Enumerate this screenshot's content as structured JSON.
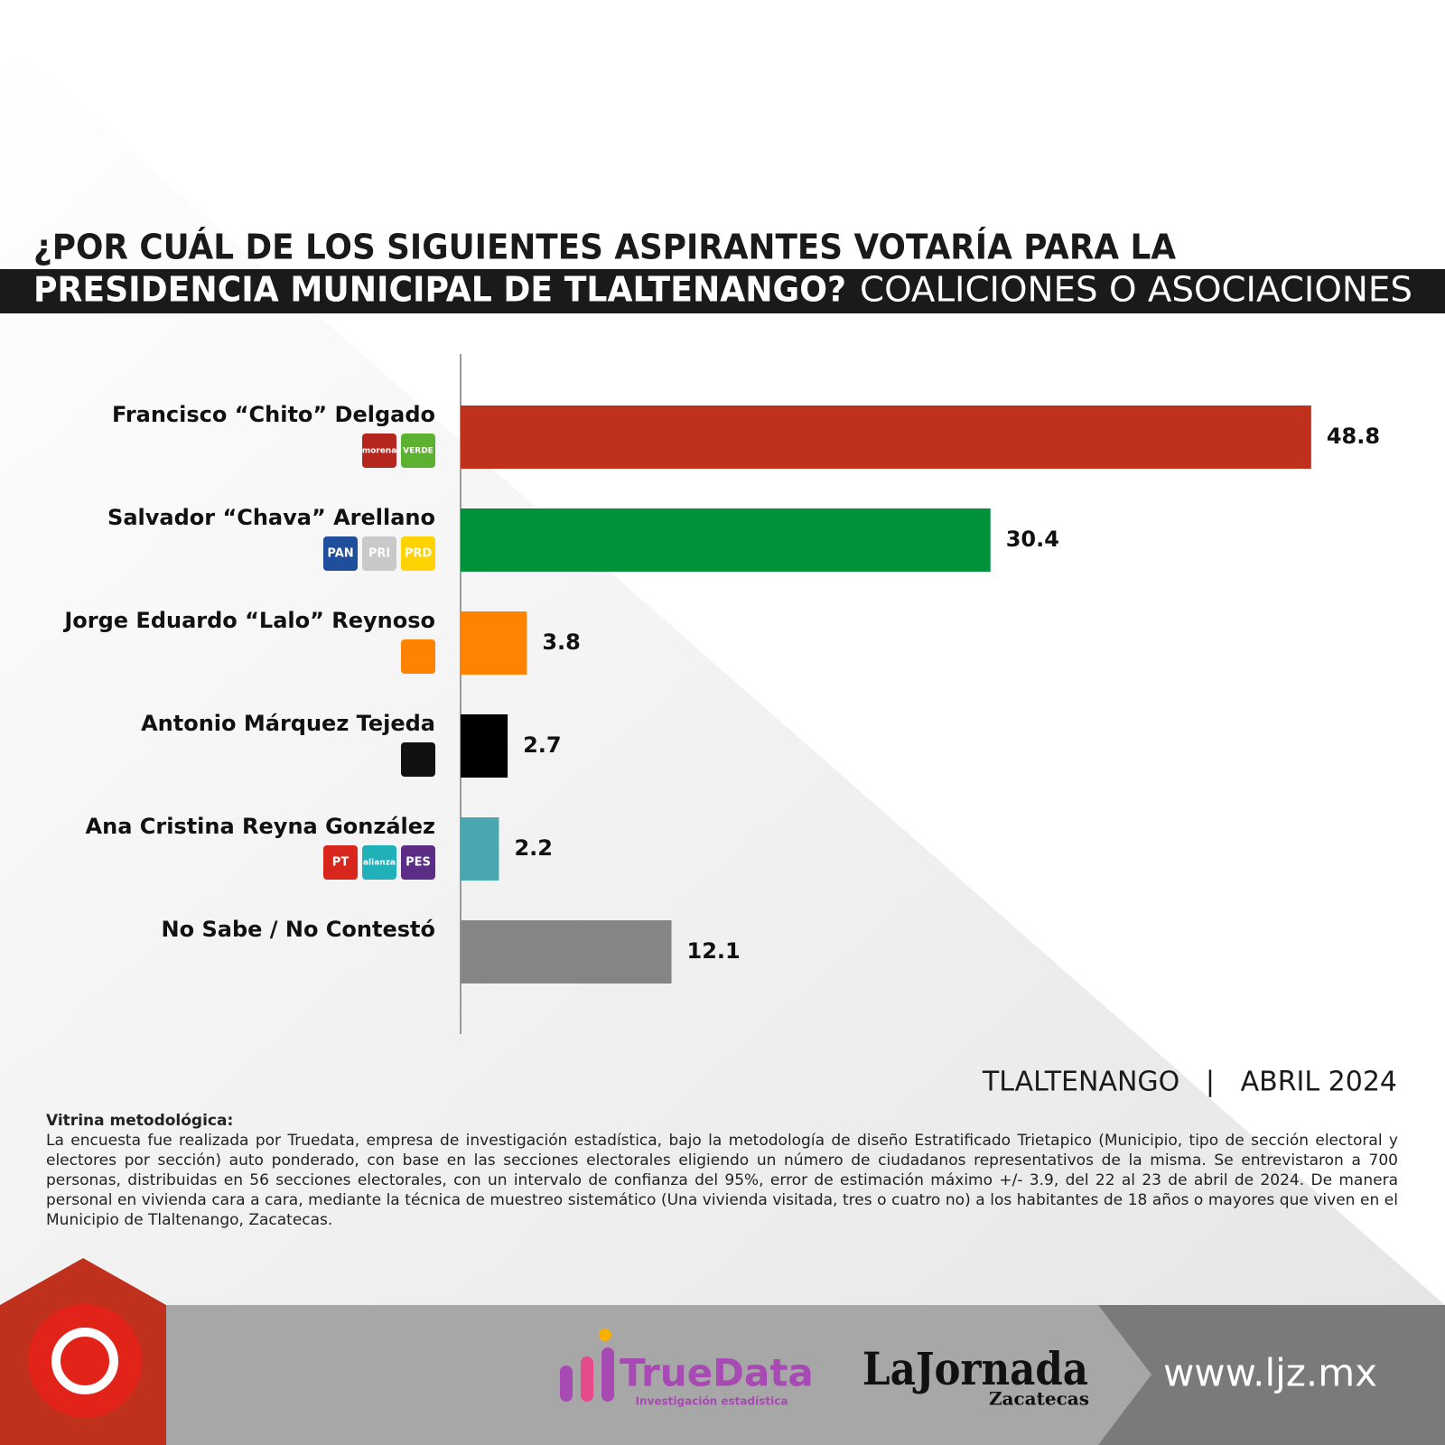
{
  "chart_data": {
    "type": "bar",
    "orientation": "horizontal",
    "title_line1": "¿POR CUÁL DE LOS SIGUIENTES ASPIRANTES VOTARÍA PARA LA",
    "title_line2": "PRESIDENCIA MUNICIPAL DE TLALTENANGO?",
    "title_line2_suffix": "COALICIONES O ASOCIACIONES",
    "categories": [
      "Francisco “Chito” Delgado",
      "Salvador “Chava” Arellano",
      "Jorge Eduardo “Lalo” Reynoso",
      "Antonio Márquez Tejeda",
      "Ana Cristina Reyna González",
      "No Sabe / No Contestó"
    ],
    "values": [
      48.8,
      30.4,
      3.8,
      2.7,
      2.2,
      12.1
    ],
    "colors": [
      "#bf311c",
      "#00923a",
      "#ff8200",
      "#000000",
      "#4aa7b1",
      "#858585"
    ],
    "logos": [
      [
        {
          "label": "morena",
          "color": "#b5261e"
        },
        {
          "label": "VERDE",
          "color": "#5cb130"
        }
      ],
      [
        {
          "label": "PAN",
          "color": "#1f4e9c"
        },
        {
          "label": "PRI",
          "color": "#c9c9c9"
        },
        {
          "label": "PRD",
          "color": "#ffd200"
        }
      ],
      [
        {
          "color": "#ff8200"
        }
      ],
      [
        {
          "color": "#111111"
        }
      ],
      [
        {
          "label": "PT",
          "color": "#d9261c"
        },
        {
          "label": "alianza",
          "color": "#1fb0b8"
        },
        {
          "label": "PES",
          "color": "#5b2d86"
        }
      ],
      []
    ],
    "place_date": "TLALTENANGO   |   ABRIL 2024",
    "methodology_title": "Vitrina metodológica:",
    "methodology": "La encuesta fue realizada por Truedata, empresa de investigación estadística, bajo la metodología de diseño Estratificado Trietapico (Municipio, tipo de sección electoral y electores por sección) auto ponderado, con base en las secciones electorales eligiendo un número de ciudadanos representativos de la misma. Se entrevistaron a 700 personas, distribuidas en 56 secciones electorales, con un intervalo de confianza del 95%, error de estimación máximo +/- 3.9, del 22 al 23 de abril de 2024. De manera personal en vivienda cara a cara, mediante la técnica de muestreo sistemático (Una vivienda visitada, tres o cuatro no) a los habitantes de 18 años o mayores que viven en el Municipio de Tlaltenango, Zacatecas.",
    "brand1": "TrueData",
    "brand1_sub": "Investigación estadística",
    "brand2": "LaJornada",
    "brand2_sub": "Zacatecas",
    "url": "www.ljz.mx"
  }
}
